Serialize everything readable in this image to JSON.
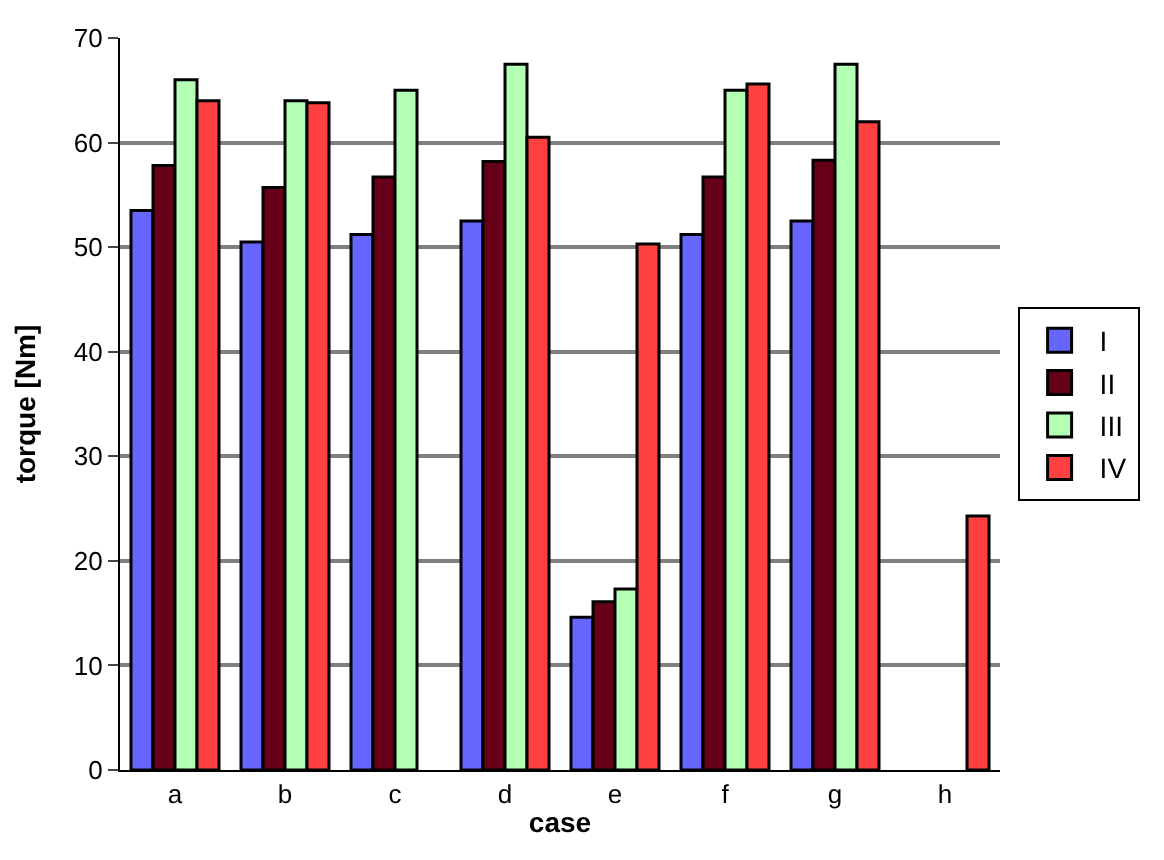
{
  "chart_data": {
    "type": "bar",
    "xlabel": "case",
    "ylabel": "torque [Nm]",
    "categories": [
      "a",
      "b",
      "c",
      "d",
      "e",
      "f",
      "g",
      "h"
    ],
    "series": [
      {
        "name": "I",
        "color": "#6666ff",
        "values": [
          53.5,
          50.5,
          51.2,
          52.5,
          14.6,
          51.2,
          52.5,
          null
        ]
      },
      {
        "name": "II",
        "color": "#660018",
        "values": [
          57.8,
          55.7,
          56.7,
          58.2,
          16.1,
          56.7,
          58.3,
          null
        ]
      },
      {
        "name": "III",
        "color": "#b3ffb3",
        "values": [
          66,
          64,
          65,
          67.5,
          17.3,
          65,
          67.5,
          null
        ]
      },
      {
        "name": "IV",
        "color": "#ff4040",
        "values": [
          64,
          63.8,
          null,
          60.5,
          50.3,
          65.6,
          62,
          24.3
        ]
      }
    ],
    "ylim": [
      0,
      70
    ],
    "yticks": [
      0,
      10,
      20,
      30,
      40,
      50,
      60,
      70
    ],
    "grid": "y",
    "legend": "right"
  }
}
